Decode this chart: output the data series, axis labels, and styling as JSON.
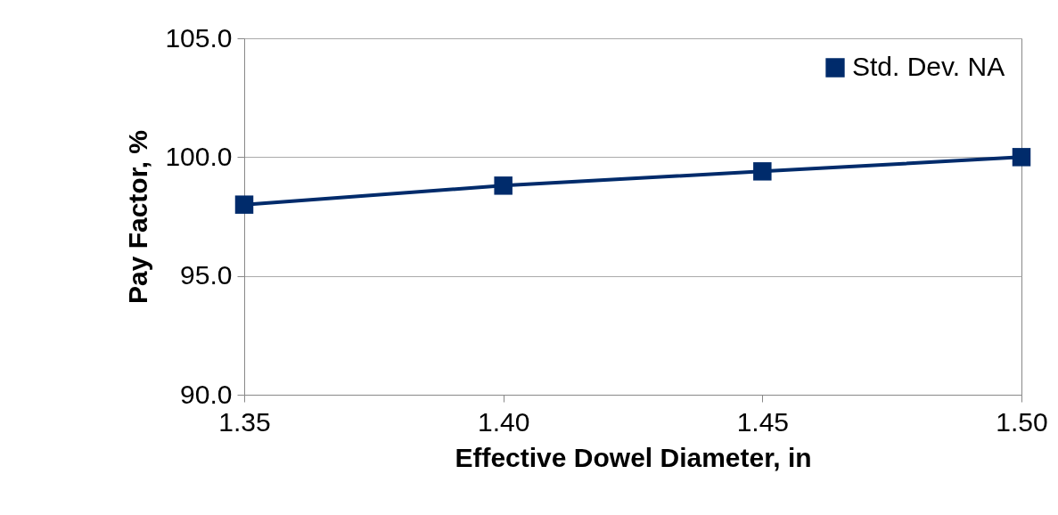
{
  "chart_data": {
    "type": "line",
    "xlabel": "Effective Dowel Diameter, in",
    "ylabel": "Pay Factor, %",
    "x": [
      1.35,
      1.4,
      1.45,
      1.5
    ],
    "series": [
      {
        "name": "Std. Dev. NA",
        "color": "#002b6b",
        "values": [
          98.0,
          98.8,
          99.4,
          100.0
        ]
      }
    ],
    "xlim": [
      1.35,
      1.5
    ],
    "xticks": [
      {
        "value": 1.35,
        "label": "1.35"
      },
      {
        "value": 1.4,
        "label": "1.40"
      },
      {
        "value": 1.45,
        "label": "1.45"
      },
      {
        "value": 1.5,
        "label": "1.50"
      }
    ],
    "ylim": [
      90,
      105
    ],
    "yticks": [
      {
        "value": 90,
        "label": "90.0"
      },
      {
        "value": 95,
        "label": "95.0"
      },
      {
        "value": 100,
        "label": "100.0"
      },
      {
        "value": 105,
        "label": "105.0"
      }
    ],
    "grid": "y",
    "legend": "top right",
    "marker": "square",
    "line_style": "solid"
  }
}
